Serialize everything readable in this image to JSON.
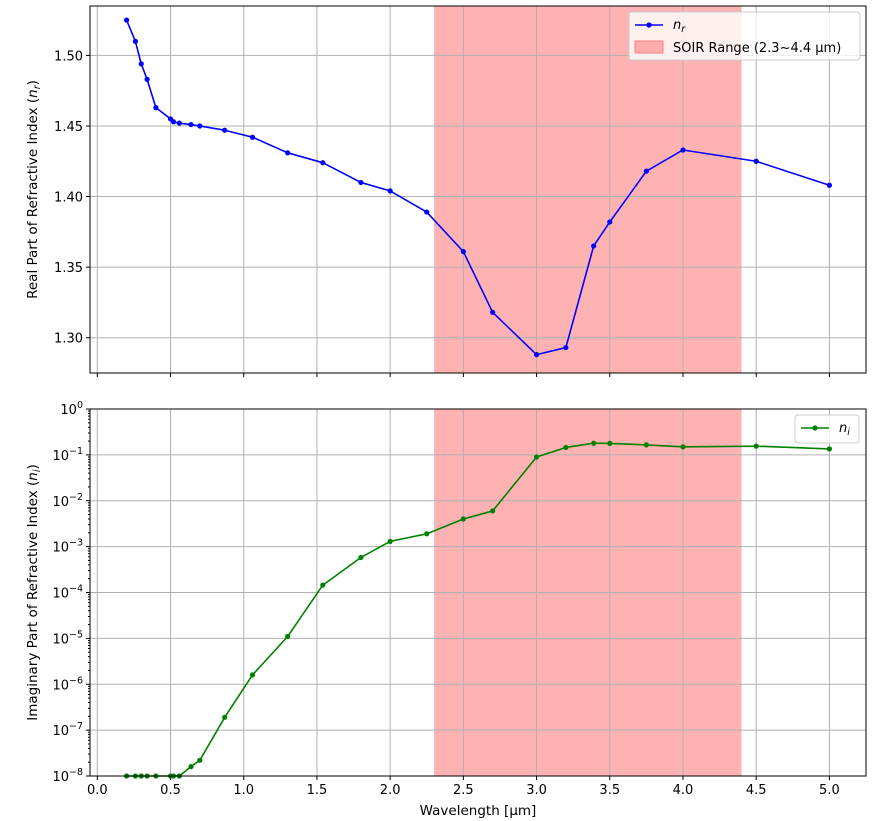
{
  "colors": {
    "nr_line": "#0000ff",
    "ni_line": "#008000",
    "span_fill": "#ff7f7f",
    "grid": "#b0b0b0"
  },
  "chart_data": [
    {
      "type": "line",
      "xlabel": "",
      "ylabel": "Real Part of Refractive Index (n_r)",
      "ylabel_plain": "Real Part of Refractive Index (",
      "ylabel_var": "n",
      "ylabel_sub": "r",
      "xlim": [
        -0.05,
        5.25
      ],
      "ylim": [
        1.275,
        1.535
      ],
      "xticks": [
        0.0,
        0.5,
        1.0,
        1.5,
        2.0,
        2.5,
        3.0,
        3.5,
        4.0,
        4.5,
        5.0
      ],
      "xtick_labels_shown": false,
      "yticks": [
        1.3,
        1.35,
        1.4,
        1.45,
        1.5
      ],
      "ytick_labels": [
        "1.30",
        "1.35",
        "1.40",
        "1.45",
        "1.50"
      ],
      "grid": true,
      "legend_position": "top-right",
      "span": {
        "x0": 2.3,
        "x1": 4.4,
        "label": "SOIR Range (2.3~4.4 µm)"
      },
      "series": [
        {
          "name": "n_r",
          "label_var": "n",
          "label_sub": "r",
          "x": [
            0.2,
            0.26,
            0.3,
            0.34,
            0.4,
            0.5,
            0.52,
            0.56,
            0.64,
            0.7,
            0.87,
            1.06,
            1.3,
            1.54,
            1.8,
            2.0,
            2.25,
            2.5,
            2.7,
            3.0,
            3.2,
            3.39,
            3.5,
            3.75,
            4.0,
            4.5,
            5.0
          ],
          "y": [
            1.525,
            1.51,
            1.494,
            1.483,
            1.463,
            1.455,
            1.453,
            1.452,
            1.451,
            1.45,
            1.447,
            1.442,
            1.431,
            1.424,
            1.41,
            1.404,
            1.389,
            1.361,
            1.318,
            1.288,
            1.293,
            1.365,
            1.382,
            1.418,
            1.433,
            1.425,
            1.408
          ]
        }
      ]
    },
    {
      "type": "line",
      "xlabel": "Wavelength [µm]",
      "ylabel": "Imaginary Part of Refractive Index (n_i)",
      "ylabel_plain": "Imaginary Part of Refractive Index (",
      "ylabel_var": "n",
      "ylabel_sub": "i",
      "xlim": [
        -0.05,
        5.25
      ],
      "ylim_log10": [
        -8,
        0
      ],
      "yscale": "log",
      "xticks": [
        0.0,
        0.5,
        1.0,
        1.5,
        2.0,
        2.5,
        3.0,
        3.5,
        4.0,
        4.5,
        5.0
      ],
      "xtick_labels": [
        "0.0",
        "0.5",
        "1.0",
        "1.5",
        "2.0",
        "2.5",
        "3.0",
        "3.5",
        "4.0",
        "4.5",
        "5.0"
      ],
      "yticks_exp": [
        -8,
        -7,
        -6,
        -5,
        -4,
        -3,
        -2,
        -1,
        0
      ],
      "ytick_base": "10",
      "grid": true,
      "legend_position": "top-right",
      "span": {
        "x0": 2.3,
        "x1": 4.4
      },
      "series": [
        {
          "name": "n_i",
          "label_var": "n",
          "label_sub": "i",
          "x": [
            0.2,
            0.26,
            0.3,
            0.34,
            0.4,
            0.5,
            0.52,
            0.56,
            0.64,
            0.7,
            0.87,
            1.06,
            1.3,
            1.54,
            1.8,
            2.0,
            2.25,
            2.5,
            2.7,
            3.0,
            3.2,
            3.39,
            3.5,
            3.75,
            4.0,
            4.5,
            5.0
          ],
          "y": [
            1e-08,
            1e-08,
            1e-08,
            1e-08,
            1e-08,
            1e-08,
            1e-08,
            1e-08,
            1.6e-08,
            2.2e-08,
            1.9e-07,
            1.6e-06,
            1.1e-05,
            0.000145,
            0.00058,
            0.0013,
            0.0019,
            0.004,
            0.006,
            0.09,
            0.145,
            0.18,
            0.178,
            0.165,
            0.15,
            0.155,
            0.135
          ]
        }
      ]
    }
  ]
}
